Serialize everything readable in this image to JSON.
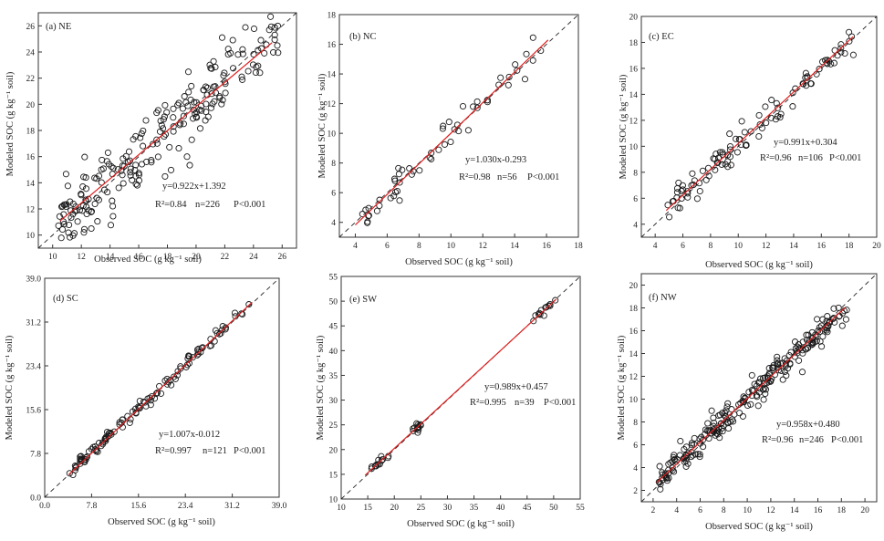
{
  "chart_data": [
    {
      "type": "scatter",
      "panel_label": "(a)  NE",
      "xlabel": "Observed SOC (g kg⁻¹ soil)",
      "ylabel": "Modeled SOC (g kg⁻¹ soil)",
      "xlim": [
        9,
        27
      ],
      "ylim": [
        9,
        27
      ],
      "xticks": [
        "10",
        "12",
        "14",
        "16",
        "18",
        "20",
        "22",
        "24",
        "26"
      ],
      "yticks": [
        "10",
        "12",
        "14",
        "16",
        "18",
        "20",
        "22",
        "24",
        "26"
      ],
      "fit": {
        "slope": 0.922,
        "intercept": 1.392,
        "x_range": [
          10.5,
          25.3
        ]
      },
      "equation": "y=0.922x+1.392",
      "stats": {
        "r2": "R²=0.84",
        "n": "n=226",
        "p": "P<0.001"
      },
      "n_points": 226,
      "x_range": [
        10.4,
        25.8
      ],
      "scatter_sd": 1.45,
      "seed": 11
    },
    {
      "type": "scatter",
      "panel_label": "(b)  NC",
      "xlabel": "Observed SOC (g kg⁻¹ soil)",
      "ylabel": "Modeled SOC (g kg⁻¹ soil)",
      "xlim": [
        3,
        18
      ],
      "ylim": [
        3,
        18
      ],
      "xticks": [
        "4",
        "6",
        "8",
        "10",
        "12",
        "14",
        "16",
        "18"
      ],
      "yticks": [
        "4",
        "6",
        "8",
        "10",
        "12",
        "14",
        "16",
        "18"
      ],
      "fit": {
        "slope": 1.03,
        "intercept": -0.293,
        "x_range": [
          4,
          16.1
        ]
      },
      "equation": "y=1.030x-0.293",
      "stats": {
        "r2": "R²=0.98",
        "n": "n=56",
        "p": "P<0.001"
      },
      "n_points": 56,
      "x_range": [
        4.1,
        16.0
      ],
      "scatter_sd": 0.45,
      "seed": 23
    },
    {
      "type": "scatter",
      "panel_label": "(c)  EC",
      "xlabel": "Observed SOC (g kg⁻¹ soil)",
      "ylabel": "Modeled SOC (g kg⁻¹ soil)",
      "xlim": [
        3,
        20
      ],
      "ylim": [
        3,
        20
      ],
      "xticks": [
        "4",
        "6",
        "8",
        "10",
        "12",
        "14",
        "16",
        "18",
        "20"
      ],
      "yticks": [
        "4",
        "6",
        "8",
        "10",
        "12",
        "14",
        "16",
        "18",
        "20"
      ],
      "fit": {
        "slope": 0.991,
        "intercept": 0.304,
        "x_range": [
          4.8,
          18.3
        ]
      },
      "equation": "y=0.991x+0.304",
      "stats": {
        "r2": "R²=0.96",
        "n": "n=106",
        "p": "P<0.001"
      },
      "n_points": 106,
      "x_range": [
        4.9,
        18.4
      ],
      "scatter_sd": 0.6,
      "seed": 37
    },
    {
      "type": "scatter",
      "panel_label": "(d)  SC",
      "xlabel": "Observed SOC (g kg⁻¹ soil)",
      "ylabel": "Modeled SOC (g kg⁻¹ soil)",
      "xlim": [
        0,
        39
      ],
      "ylim": [
        0,
        39
      ],
      "xticks": [
        "0.0",
        "7.8",
        "15.6",
        "23.4",
        "31.2",
        "39.0"
      ],
      "yticks": [
        "0.0",
        "7.8",
        "15.6",
        "23.4",
        "31.2",
        "39.0"
      ],
      "fit": {
        "slope": 1.007,
        "intercept": -0.012,
        "x_range": [
          4,
          34.5
        ]
      },
      "equation": "y=1.007x-0.012",
      "stats": {
        "r2": "R²=0.997",
        "n": "n=121",
        "p": "P<0.001"
      },
      "n_points": 121,
      "x_range": [
        4.0,
        34.2
      ],
      "scatter_sd": 0.6,
      "seed": 53
    },
    {
      "type": "scatter",
      "panel_label": "(e)  SW",
      "xlabel": "Observed SOC (g kg⁻¹ soil)",
      "ylabel": "Modeled SOC (g kg⁻¹ soil)",
      "xlim": [
        10,
        55
      ],
      "ylim": [
        10,
        55
      ],
      "xticks": [
        "10",
        "15",
        "20",
        "25",
        "30",
        "35",
        "40",
        "45",
        "50",
        "55"
      ],
      "yticks": [
        "10",
        "15",
        "20",
        "25",
        "30",
        "35",
        "40",
        "45",
        "50",
        "55"
      ],
      "fit": {
        "slope": 0.989,
        "intercept": 0.457,
        "x_range": [
          14.5,
          50.5
        ]
      },
      "equation": "y=0.989x+0.457",
      "stats": {
        "r2": "R²=0.995",
        "n": "n=39",
        "p": "P<0.001"
      },
      "n_points": 39,
      "clusters": [
        [
          15.5,
          19.0
        ],
        [
          23.5,
          25.0
        ],
        [
          45.5,
          50.5
        ]
      ],
      "scatter_sd": 0.4,
      "seed": 71
    },
    {
      "type": "scatter",
      "panel_label": "(f)  NW",
      "xlabel": "Observed SOC (g kg⁻¹ soil)",
      "ylabel": "Modeled SOC (g kg⁻¹ soil)",
      "xlim": [
        1,
        21
      ],
      "ylim": [
        1,
        21
      ],
      "xticks": [
        "2",
        "4",
        "6",
        "8",
        "10",
        "12",
        "14",
        "16",
        "18",
        "20"
      ],
      "yticks": [
        "2",
        "4",
        "6",
        "8",
        "10",
        "12",
        "14",
        "16",
        "18",
        "20"
      ],
      "fit": {
        "slope": 0.958,
        "intercept": 0.48,
        "x_range": [
          2.3,
          18.3
        ]
      },
      "equation": "y=0.958x+0.480",
      "stats": {
        "r2": "R²=0.96",
        "n": "n=246",
        "p": "P<0.001"
      },
      "n_points": 246,
      "x_range": [
        2.4,
        18.5
      ],
      "scatter_sd": 0.6,
      "seed": 89
    }
  ]
}
